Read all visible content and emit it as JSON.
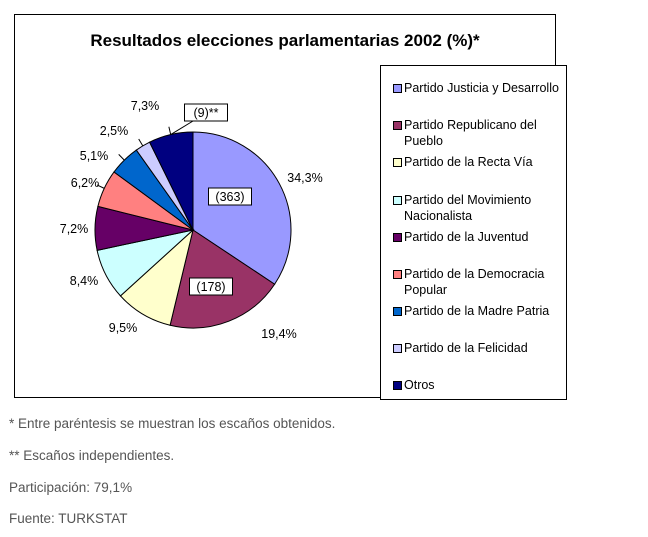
{
  "chart_data": {
    "type": "pie",
    "title": "Resultados elecciones parlamentarias 2002 (%)*",
    "series": [
      {
        "name": "Partido Justicia y Desarrollo",
        "value": 34.3,
        "label": "34,3%",
        "seats_label": "(363)",
        "color": "#9999ff"
      },
      {
        "name": "Partido Republicano del Pueblo",
        "value": 19.4,
        "label": "19,4%",
        "seats_label": "(178)",
        "color": "#993366"
      },
      {
        "name": "Partido de la Recta Vía",
        "value": 9.5,
        "label": "9,5%",
        "seats_label": "",
        "color": "#ffffcc"
      },
      {
        "name": "Partido del Movimiento Nacionalista",
        "value": 8.4,
        "label": "8,4%",
        "seats_label": "",
        "color": "#ccffff"
      },
      {
        "name": "Partido de la Juventud",
        "value": 7.2,
        "label": "7,2%",
        "seats_label": "",
        "color": "#660066"
      },
      {
        "name": "Partido de la Democracia Popular",
        "value": 6.2,
        "label": "6,2%",
        "seats_label": "",
        "color": "#ff8080"
      },
      {
        "name": "Partido de la Madre Patria",
        "value": 5.1,
        "label": "5,1%",
        "seats_label": "",
        "color": "#0066cc"
      },
      {
        "name": "Partido de la Felicidad",
        "value": 2.5,
        "label": "2,5%",
        "seats_label": "",
        "color": "#ccccff"
      },
      {
        "name": "Otros",
        "value": 7.3,
        "label": "7,3%",
        "seats_label": "(9)**",
        "color": "#000080"
      }
    ],
    "legend_position": "right"
  },
  "legend": {
    "items": [
      {
        "label": "Partido Justicia y Desarrollo",
        "color": "#9999ff"
      },
      {
        "label": "Partido Republicano del Pueblo",
        "color": "#993366"
      },
      {
        "label": "Partido de la Recta Vía",
        "color": "#ffffcc"
      },
      {
        "label": "Partido del Movimiento Nacionalista",
        "color": "#ccffff"
      },
      {
        "label": "Partido de la Juventud",
        "color": "#660066"
      },
      {
        "label": "Partido de la Democracia Popular",
        "color": "#ff8080"
      },
      {
        "label": "Partido de la Madre Patria",
        "color": "#0066cc"
      },
      {
        "label": "Partido de la Felicidad",
        "color": "#ccccff"
      },
      {
        "label": "Otros",
        "color": "#000080"
      }
    ]
  },
  "notes": {
    "seats_note": "* Entre paréntesis se muestran los escaños obtenidos.",
    "independents_note": "** Escaños independientes.",
    "participation": "Participación: 79,1%",
    "source": "Fuente: TURKSTAT"
  }
}
